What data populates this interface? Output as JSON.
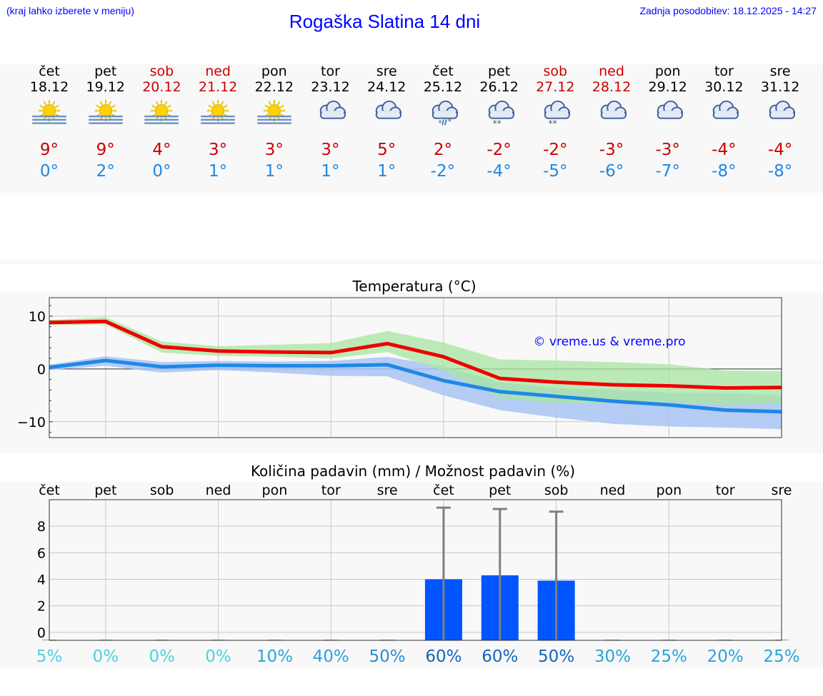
{
  "header": {
    "hint": "(kraj lahko izberete v meniju)",
    "title": "Rogaška Slatina 14 dni",
    "updated": "Zadnja posodobitev: 18.12.2025 - 14:27"
  },
  "days": [
    {
      "name": "čet",
      "date": "18.12",
      "weekend": false,
      "icon": "sunny-haze-icon",
      "tmax": "9°",
      "tmin": "0°"
    },
    {
      "name": "pet",
      "date": "19.12",
      "weekend": false,
      "icon": "sunny-haze-icon",
      "tmax": "9°",
      "tmin": "2°"
    },
    {
      "name": "sob",
      "date": "20.12",
      "weekend": true,
      "icon": "sunny-haze-icon",
      "tmax": "4°",
      "tmin": "0°"
    },
    {
      "name": "ned",
      "date": "21.12",
      "weekend": true,
      "icon": "sunny-haze-icon",
      "tmax": "3°",
      "tmin": "1°"
    },
    {
      "name": "pon",
      "date": "22.12",
      "weekend": false,
      "icon": "sunny-haze-icon",
      "tmax": "3°",
      "tmin": "1°"
    },
    {
      "name": "tor",
      "date": "23.12",
      "weekend": false,
      "icon": "cloudy-icon",
      "tmax": "3°",
      "tmin": "1°"
    },
    {
      "name": "sre",
      "date": "24.12",
      "weekend": false,
      "icon": "cloudy-icon",
      "tmax": "5°",
      "tmin": "1°"
    },
    {
      "name": "čet",
      "date": "25.12",
      "weekend": false,
      "icon": "sleet-icon",
      "tmax": "2°",
      "tmin": "-2°"
    },
    {
      "name": "pet",
      "date": "26.12",
      "weekend": false,
      "icon": "snow-icon",
      "tmax": "-2°",
      "tmin": "-4°"
    },
    {
      "name": "sob",
      "date": "27.12",
      "weekend": true,
      "icon": "snow-icon",
      "tmax": "-2°",
      "tmin": "-5°"
    },
    {
      "name": "ned",
      "date": "28.12",
      "weekend": true,
      "icon": "cloudy-icon",
      "tmax": "-3°",
      "tmin": "-6°"
    },
    {
      "name": "pon",
      "date": "29.12",
      "weekend": false,
      "icon": "cloudy-icon",
      "tmax": "-3°",
      "tmin": "-7°"
    },
    {
      "name": "tor",
      "date": "30.12",
      "weekend": false,
      "icon": "cloudy-icon",
      "tmax": "-4°",
      "tmin": "-8°"
    },
    {
      "name": "sre",
      "date": "31.12",
      "weekend": false,
      "icon": "cloudy-icon",
      "tmax": "-4°",
      "tmin": "-8°"
    }
  ],
  "colors": {
    "weekend": "#cc0000",
    "weekday": "#000000",
    "tmax": "#cc0000",
    "tmin": "#1e88e5",
    "max_line": "#ee0000",
    "min_line": "#1e88e5",
    "max_band": "#a8e6a0",
    "min_band": "#a9c4f5",
    "overlap_band": "#7fc4a8",
    "bar": "#0055ff",
    "err": "#808080",
    "watermark": "#0000ff"
  },
  "chart_data": [
    {
      "type": "line",
      "title": "Temperatura (°C)",
      "ylim": [
        -13,
        13.5
      ],
      "yticks": [
        10,
        0,
        -10
      ],
      "ytick_labels": [
        "10",
        "0",
        "−10"
      ],
      "watermark": "© vreme.us & vreme.pro",
      "x": [
        0,
        1,
        2,
        3,
        4,
        5,
        6,
        7,
        8,
        9,
        10,
        11,
        12,
        13
      ],
      "series": [
        {
          "name": "max",
          "values": [
            8.8,
            9.0,
            4.2,
            3.4,
            3.2,
            3.1,
            4.8,
            2.3,
            -1.8,
            -2.5,
            -3.0,
            -3.2,
            -3.6,
            -3.5
          ]
        },
        {
          "name": "min",
          "values": [
            0.3,
            1.6,
            0.4,
            0.7,
            0.6,
            0.6,
            0.8,
            -2.2,
            -4.3,
            -5.2,
            -6.1,
            -6.8,
            -7.8,
            -8.1
          ]
        }
      ],
      "bands": [
        {
          "name": "max_range",
          "upper": [
            9.3,
            9.8,
            5.2,
            4.3,
            4.6,
            4.9,
            7.2,
            5.0,
            1.8,
            1.6,
            1.3,
            0.9,
            -0.3,
            -0.4
          ],
          "lower": [
            8.3,
            8.4,
            3.1,
            2.5,
            2.3,
            2.0,
            3.2,
            -0.4,
            -5.5,
            -6.5,
            -6.5,
            -6.3,
            -6.8,
            -6.6
          ]
        },
        {
          "name": "min_range",
          "upper": [
            0.8,
            2.4,
            1.3,
            1.5,
            1.4,
            1.5,
            2.3,
            0.5,
            -2.5,
            -3.6,
            -4.0,
            -4.5,
            -4.6,
            -5.0
          ],
          "lower": [
            -0.2,
            0.6,
            -0.7,
            -0.2,
            -0.7,
            -1.3,
            -1.4,
            -5.0,
            -7.8,
            -9.2,
            -10.4,
            -10.9,
            -11.1,
            -11.4
          ]
        }
      ]
    },
    {
      "type": "bar",
      "title": "Količina padavin (mm) / Možnost padavin (%)",
      "categories": [
        "čet",
        "pet",
        "sob",
        "ned",
        "pon",
        "tor",
        "sre",
        "čet",
        "pet",
        "sob",
        "ned",
        "pon",
        "tor",
        "sre"
      ],
      "values": [
        0,
        0,
        0,
        0,
        0,
        0,
        0,
        4.0,
        4.3,
        3.9,
        0,
        0,
        0,
        0
      ],
      "err_upper": [
        0,
        0,
        0,
        0,
        0,
        0,
        0,
        9.4,
        9.3,
        9.1,
        0,
        0,
        0,
        0
      ],
      "ylim": [
        -0.6,
        10.0
      ],
      "yticks": [
        8,
        6,
        4,
        2,
        0
      ],
      "ytick_labels": [
        "8",
        "6",
        "4",
        "2",
        "0"
      ],
      "probability_labels": [
        "5%",
        "0%",
        "0%",
        "0%",
        "10%",
        "40%",
        "50%",
        "60%",
        "60%",
        "50%",
        "30%",
        "25%",
        "20%",
        "25%"
      ],
      "probability_colors": [
        "#4fd0e0",
        "#4fd0e0",
        "#4fd0e0",
        "#4fd0e0",
        "#2aa3dd",
        "#2aa3dd",
        "#2a90d0",
        "#1565b8",
        "#1565b8",
        "#1565b8",
        "#2aa3dd",
        "#2aa3dd",
        "#2aa3dd",
        "#2aa3dd"
      ]
    }
  ]
}
